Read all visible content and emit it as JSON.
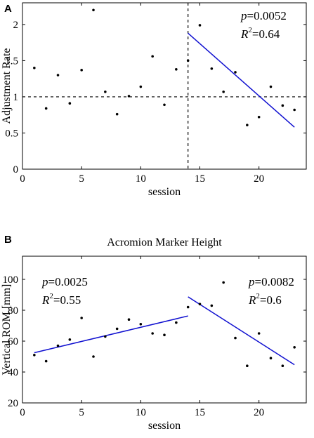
{
  "chart_data": [
    {
      "type": "scatter",
      "panel_label": "A",
      "title": "",
      "xlabel": "session",
      "ylabel": "Adjustment Rate",
      "xlim": [
        0,
        24
      ],
      "ylim": [
        0,
        2.3
      ],
      "xticks": [
        0,
        5,
        10,
        15,
        20
      ],
      "yticks": [
        0,
        0.5,
        1,
        1.5,
        2
      ],
      "xtick_labels": [
        "0",
        "5",
        "10",
        "15",
        "20"
      ],
      "ytick_labels": [
        "0",
        "0.5",
        "1",
        "1.5",
        "2"
      ],
      "series": [
        {
          "marker": "dot",
          "x": [
            1,
            2,
            3,
            4,
            5,
            6,
            7,
            8,
            9,
            10,
            11,
            12,
            13,
            14,
            15,
            16,
            17,
            18,
            19,
            20,
            21,
            22,
            23
          ],
          "y": [
            1.4,
            0.84,
            1.3,
            0.91,
            1.37,
            2.2,
            1.07,
            0.76,
            1.01,
            1.14,
            1.56,
            0.89,
            1.38,
            1.5,
            1.99,
            1.39,
            1.07,
            1.34,
            0.61,
            0.72,
            1.14,
            0.88,
            0.82
          ]
        }
      ],
      "fit_lines": [
        {
          "x": [
            14,
            23
          ],
          "y": [
            1.88,
            0.58
          ],
          "color": "#1010d0"
        }
      ],
      "reference_lines": [
        {
          "orientation": "horizontal",
          "value": 1,
          "style": "dashed"
        },
        {
          "orientation": "vertical",
          "value": 14,
          "style": "dashed"
        }
      ],
      "annotations": [
        {
          "p_label": "p",
          "p_value": "=0.0052",
          "r_label": "R",
          "r_exp": "2",
          "r_value": "=0.64"
        }
      ],
      "grid": false,
      "legend": "none"
    },
    {
      "type": "scatter",
      "panel_label": "B",
      "title": "Acromion Marker Height",
      "xlabel": "session",
      "ylabel": "Vertical ROM [mm]",
      "xlim": [
        0,
        24
      ],
      "ylim": [
        20,
        115
      ],
      "xticks": [
        0,
        5,
        10,
        15,
        20
      ],
      "yticks": [
        20,
        40,
        60,
        80,
        100
      ],
      "xtick_labels": [
        "0",
        "5",
        "10",
        "15",
        "20"
      ],
      "ytick_labels": [
        "20",
        "40",
        "60",
        "80",
        "100"
      ],
      "series": [
        {
          "marker": "dot",
          "x": [
            1,
            2,
            3,
            4,
            5,
            6,
            7,
            8,
            9,
            10,
            11,
            12,
            13,
            14,
            15,
            16,
            17,
            18,
            19,
            20,
            21,
            22,
            23
          ],
          "y": [
            51,
            47,
            57,
            61,
            75,
            50,
            63,
            68,
            74,
            71,
            65,
            64,
            72,
            82,
            84,
            83,
            98,
            62,
            44,
            65,
            49,
            44,
            56
          ]
        }
      ],
      "fit_lines": [
        {
          "x": [
            1,
            14
          ],
          "y": [
            52.5,
            76.3
          ],
          "color": "#1010d0"
        },
        {
          "x": [
            14,
            23
          ],
          "y": [
            88.7,
            44.7
          ],
          "color": "#1010d0"
        }
      ],
      "reference_lines": [],
      "annotations": [
        {
          "p_label": "p",
          "p_value": "=0.0025",
          "r_label": "R",
          "r_exp": "2",
          "r_value": "=0.55"
        },
        {
          "p_label": "p",
          "p_value": "=0.0082",
          "r_label": "R",
          "r_exp": "2",
          "r_value": "=0.6"
        }
      ],
      "grid": false,
      "legend": "none"
    }
  ],
  "colors": {
    "axis": "#000000",
    "points": "#000000",
    "fit": "#1010d0"
  }
}
